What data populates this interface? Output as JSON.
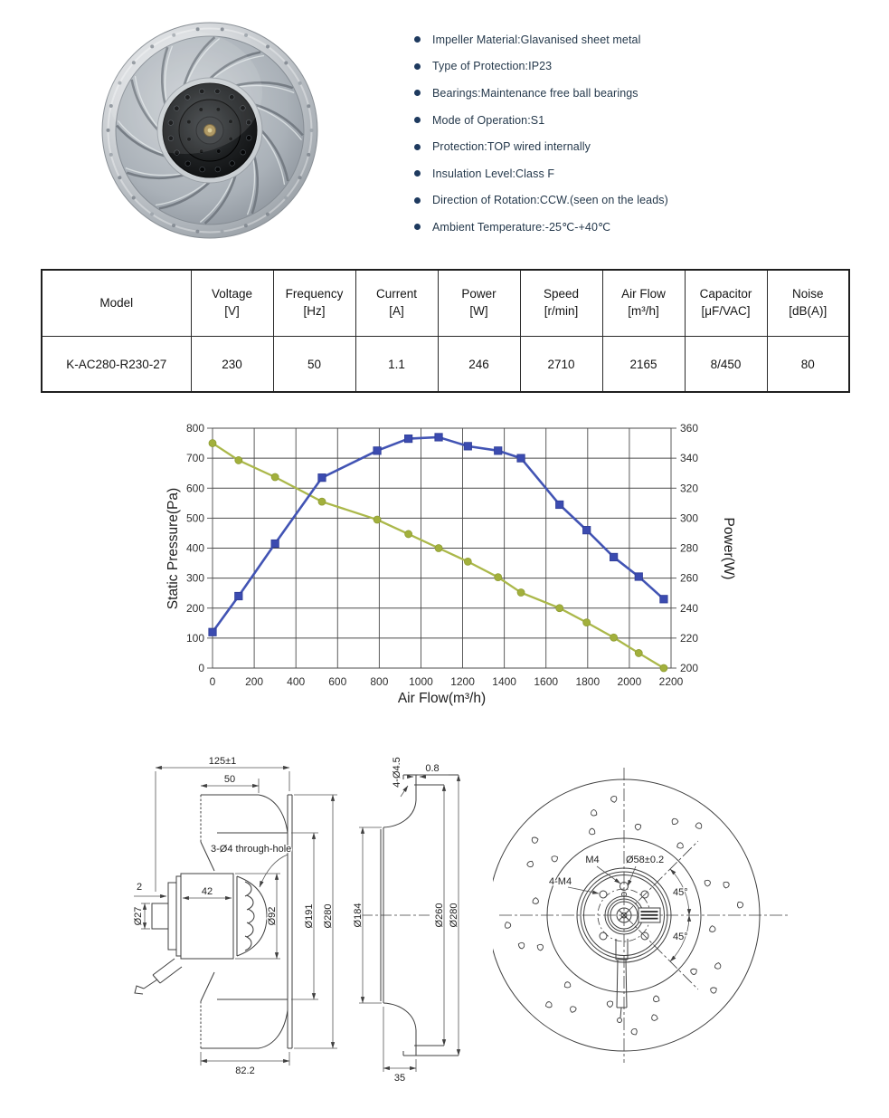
{
  "specs_bullets": [
    "Impeller Material:Glavanised sheet metal",
    "Type of Protection:IP23",
    "Bearings:Maintenance free ball bearings",
    "Mode of Operation:S1",
    "Protection:TOP wired internally",
    "Insulation Level:Class F",
    "Direction of Rotation:CCW.(seen on the leads)",
    "Ambient Temperature:-25℃-+40℃"
  ],
  "table": {
    "columns": [
      {
        "label": "Model",
        "unit": ""
      },
      {
        "label": "Voltage",
        "unit": "[V]"
      },
      {
        "label": "Frequency",
        "unit": "[Hz]"
      },
      {
        "label": "Current",
        "unit": "[A]"
      },
      {
        "label": "Power",
        "unit": "[W]"
      },
      {
        "label": "Speed",
        "unit": "[r/min]"
      },
      {
        "label": "Air Flow",
        "unit": "[m³/h]"
      },
      {
        "label": "Capacitor",
        "unit": "[μF/VAC]"
      },
      {
        "label": "Noise",
        "unit": "[dB(A)]"
      }
    ],
    "row": [
      "K-AC280-R230-27",
      "230",
      "50",
      "1.1",
      "246",
      "2710",
      "2165",
      "8/450",
      "80"
    ]
  },
  "chart_data": {
    "type": "line",
    "xlabel": "Air Flow(m³/h)",
    "ylabel_left": "Static Pressure(Pa)",
    "ylabel_right": "Power(W)",
    "x_axis": {
      "min": 0,
      "max": 2200,
      "step": 200
    },
    "y_axis_left": {
      "min": 0,
      "max": 800,
      "step": 100
    },
    "y_axis_right": {
      "min": 200,
      "max": 360,
      "step": 20
    },
    "grid": true,
    "legend": "none",
    "x": [
      0,
      125,
      300,
      525,
      790,
      940,
      1085,
      1225,
      1370,
      1480,
      1665,
      1795,
      1925,
      2045,
      2165
    ],
    "series": [
      {
        "name": "Static Pressure",
        "axis": "left",
        "marker": "circle",
        "color": "#abb84a",
        "marker_color": "#a2b03c",
        "values": [
          750,
          693,
          637,
          555,
          495,
          447,
          400,
          355,
          303,
          252,
          200,
          152,
          102,
          50,
          0
        ]
      },
      {
        "name": "Power",
        "axis": "right",
        "marker": "square",
        "color": "#4254b4",
        "marker_color": "#3b4bb0",
        "values": [
          224,
          248,
          283,
          327,
          345,
          353,
          354,
          348,
          345,
          340,
          309,
          292,
          274,
          261,
          246
        ]
      }
    ]
  },
  "drawings": {
    "side_view": {
      "dim_overall": "125±1",
      "dim_top": "50",
      "note_hole": "3-Ø4 through-hole",
      "dim_step": "2",
      "dim_motor_len": "42",
      "dim_shaft": "Ø27",
      "dim_motor_dia": "Ø92",
      "dim_inner": "Ø191",
      "dim_outer": "Ø280",
      "dim_bottom": "82.2"
    },
    "inlet_ring": {
      "note_holes": "4-Ø4.5",
      "dim_thickness": "0.8",
      "dim_throat": "Ø184",
      "dim_bolt_circle": "Ø260",
      "dim_flange": "Ø280",
      "dim_depth": "35"
    },
    "back_view": {
      "note_m4": "M4",
      "dim_bolt_circle": "Ø58±0.2",
      "note_4m4": "4-M4",
      "angle_upper": "45°",
      "angle_lower": "45°"
    }
  }
}
